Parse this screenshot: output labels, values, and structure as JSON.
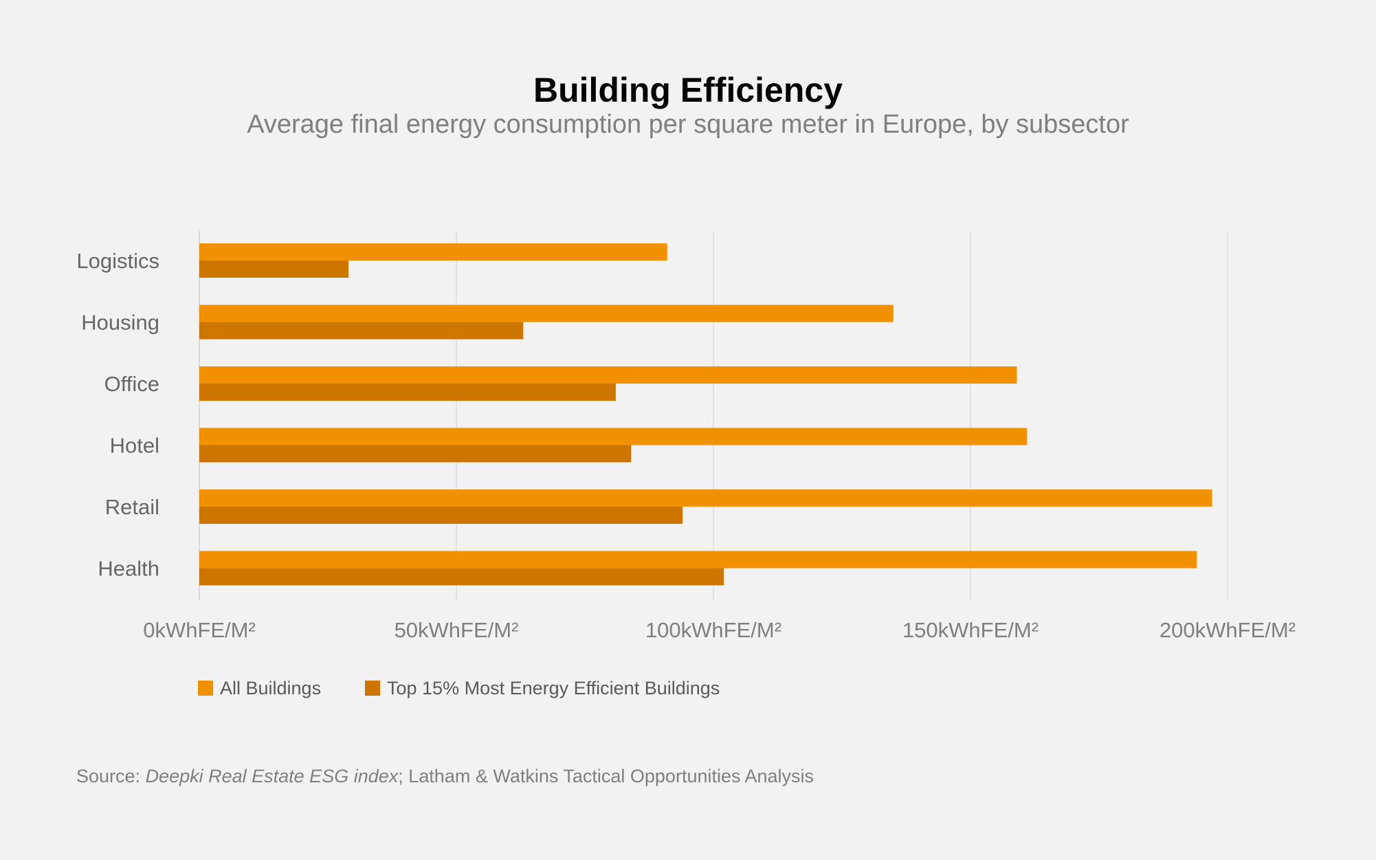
{
  "chart_data": {
    "type": "bar",
    "orientation": "horizontal",
    "title": "Building Efficiency",
    "subtitle": "Average final energy consumption per square meter in Europe, by subsector",
    "categories": [
      "Logistics",
      "Housing",
      "Office",
      "Hotel",
      "Retail",
      "Health"
    ],
    "series": [
      {
        "name": "All Buildings",
        "color": "#f29100",
        "values": [
          91,
          135,
          159,
          161,
          197,
          194
        ]
      },
      {
        "name": "Top 15% Most Energy Efficient Buildings",
        "color": "#cc7600",
        "values": [
          29,
          63,
          81,
          84,
          94,
          102
        ]
      }
    ],
    "xlim": [
      0,
      200
    ],
    "xticks": [
      0,
      50,
      100,
      150,
      200
    ],
    "xtick_labels": [
      "0kWhFE/M²",
      "50kWhFE/M²",
      "100kWhFE/M²",
      "150kWhFE/M²",
      "200kWhFE/M²"
    ],
    "xlabel": "",
    "ylabel": "",
    "grid": "vertical",
    "legend_position": "bottom-left"
  },
  "source": {
    "prefix": "Source: ",
    "italic": "Deepki Real Estate ESG index",
    "suffix": "; Latham & Watkins Tactical Opportunities Analysis"
  }
}
